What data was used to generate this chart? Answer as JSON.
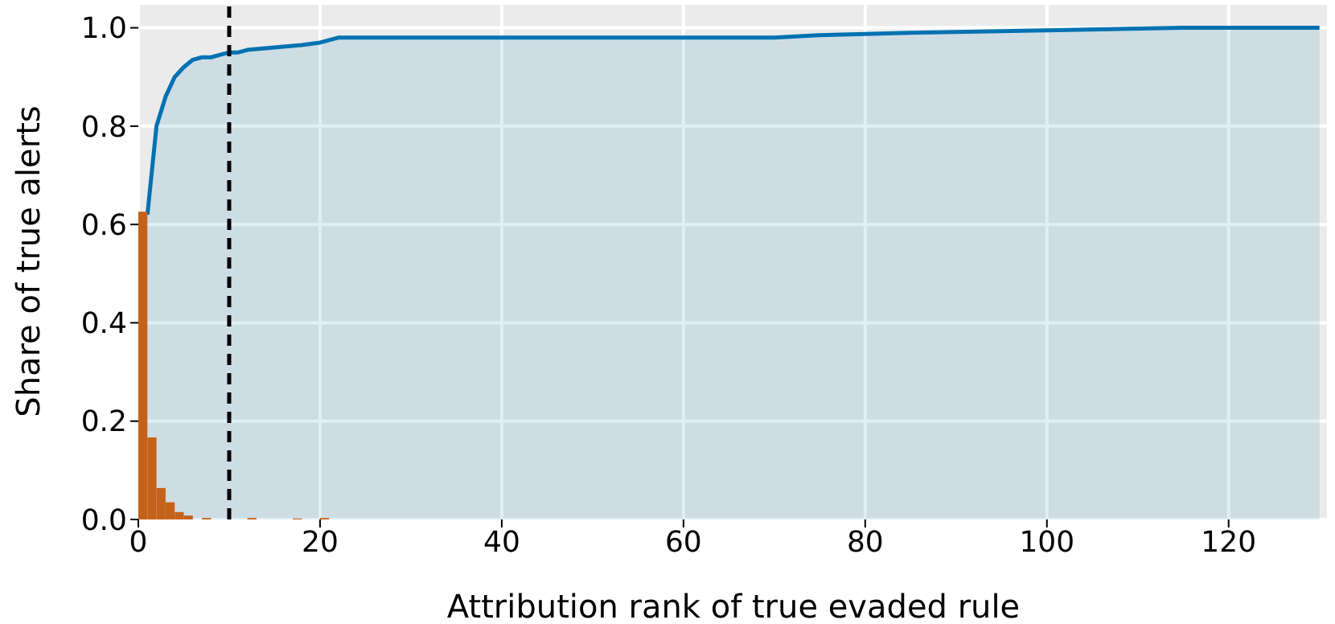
{
  "chart_data": {
    "type": "histogram",
    "xlabel": "Attribution rank of true evaded rule",
    "ylabel": "Share of true alerts",
    "xlim": [
      0,
      131
    ],
    "xticks": [
      0,
      20,
      40,
      60,
      80,
      100,
      120
    ],
    "ylim": [
      0,
      1.05
    ],
    "yticks": [
      {
        "value": 0,
        "label": "0.0"
      },
      {
        "value": 0.2,
        "label": "0.2"
      },
      {
        "value": 0.4,
        "label": "0.4"
      },
      {
        "value": 0.6,
        "label": "0.6"
      },
      {
        "value": 0.8,
        "label": "0.8"
      },
      {
        "value": 1,
        "label": "1.0"
      }
    ],
    "grid": true,
    "legend": false,
    "series": [
      {
        "color": "#c5621a",
        "bins": [
          0,
          1,
          2,
          3,
          4,
          5,
          6,
          7,
          8,
          9,
          10,
          11,
          12,
          13,
          14,
          15,
          16,
          17,
          18,
          19,
          20,
          21,
          22
        ],
        "values": [
          0.626,
          0.167,
          0.064,
          0.035,
          0.015,
          0.008,
          0,
          0.003,
          0,
          0,
          0,
          0,
          0.003,
          0,
          0,
          0,
          0,
          0.002,
          0,
          0,
          0.003,
          0
        ]
      },
      {
        "type": "area",
        "color": "#0072b2",
        "x": [
          1,
          2,
          3,
          4,
          5,
          6,
          7,
          8,
          9,
          10,
          11,
          12,
          15,
          18,
          20,
          22,
          70,
          75,
          85,
          100,
          115,
          130
        ],
        "values": [
          0.62,
          0.8,
          0.86,
          0.9,
          0.92,
          0.935,
          0.94,
          0.94,
          0.945,
          0.95,
          0.95,
          0.955,
          0.96,
          0.965,
          0.97,
          0.98,
          0.98,
          0.985,
          0.99,
          0.995,
          1.0,
          1.0
        ]
      }
    ],
    "ref_lines": [
      {
        "axis": "x",
        "value": 10,
        "color": "#000000",
        "line_style": "dashed"
      }
    ]
  }
}
